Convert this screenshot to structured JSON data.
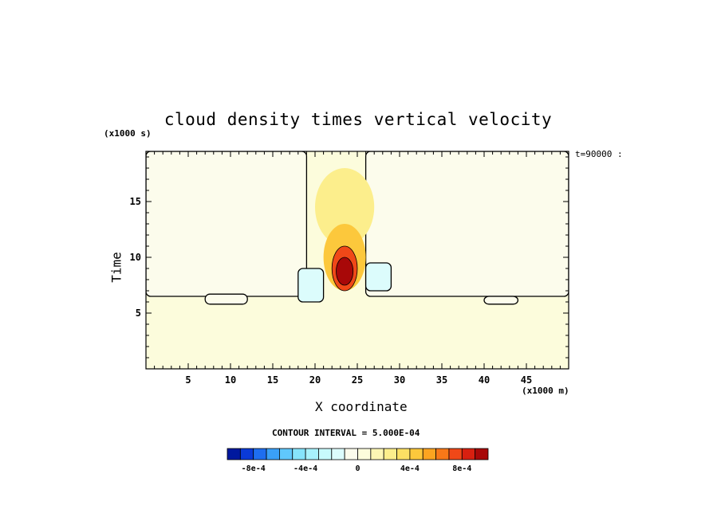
{
  "chart_data": {
    "type": "heatmap",
    "title": "cloud density times vertical velocity",
    "xlabel": "X coordinate",
    "ylabel": "Time",
    "x_unit": "(x1000 m)",
    "y_unit": "(x1000 s)",
    "time_label": "t=90000 :",
    "xlim": [
      0,
      50
    ],
    "ylim": [
      0,
      19.5
    ],
    "x_ticks": [
      5,
      10,
      15,
      20,
      25,
      30,
      35,
      40,
      45
    ],
    "y_ticks": [
      5,
      10,
      15
    ],
    "contour_interval_text": "CONTOUR INTERVAL = 5.000E-04",
    "colorbar": {
      "tick_labels": [
        "-8e-4",
        "-4e-4",
        "0",
        "4e-4",
        "8e-4"
      ],
      "tick_values": [
        -0.0008,
        -0.0004,
        0,
        0.0004,
        0.0008
      ],
      "levels": [
        -0.001,
        -0.0009,
        -0.0008,
        -0.0007,
        -0.0006,
        -0.0005,
        -0.0004,
        -0.0003,
        -0.0002,
        -0.0001,
        0,
        0.0001,
        0.0002,
        0.0003,
        0.0004,
        0.0005,
        0.0006,
        0.0007,
        0.0008,
        0.0009,
        0.001
      ],
      "colors": [
        "#00189e",
        "#0a3ad8",
        "#1e6ef0",
        "#3aa0f8",
        "#60c8fc",
        "#86e4fc",
        "#a8f2fc",
        "#c8fafc",
        "#dcfcfc",
        "#fcfcec",
        "#fcfcdc",
        "#fcf6b4",
        "#fcee8c",
        "#fce064",
        "#fcc83c",
        "#fca420",
        "#f87818",
        "#f04818",
        "#d82010",
        "#a80808"
      ]
    },
    "features": {
      "background_level": 5e-05,
      "negative_regions": [
        {
          "x": [
            0,
            19
          ],
          "y": [
            6.5,
            19.5
          ],
          "level": -0.0001
        },
        {
          "x": [
            26,
            50
          ],
          "y": [
            6.5,
            19.5
          ],
          "level": -0.0001
        },
        {
          "x": [
            7,
            12
          ],
          "y": [
            5.8,
            6.7
          ],
          "level": -0.0001
        },
        {
          "x": [
            40,
            44
          ],
          "y": [
            5.8,
            6.5
          ],
          "level": -0.0001
        },
        {
          "x": [
            18,
            21
          ],
          "y": [
            6,
            9
          ],
          "level": -0.0002
        },
        {
          "x": [
            26,
            29
          ],
          "y": [
            7,
            9.5
          ],
          "level": -0.0002
        }
      ],
      "positive_core": [
        {
          "x": [
            20,
            27
          ],
          "y": [
            11,
            18
          ],
          "level": 0.00025
        },
        {
          "x": [
            21,
            26
          ],
          "y": [
            7,
            13
          ],
          "level": 0.0004
        },
        {
          "x": [
            22,
            25
          ],
          "y": [
            7,
            11
          ],
          "level": 0.0007
        },
        {
          "x": [
            22.5,
            24.5
          ],
          "y": [
            7.5,
            10
          ],
          "level": 0.0009
        }
      ]
    }
  }
}
